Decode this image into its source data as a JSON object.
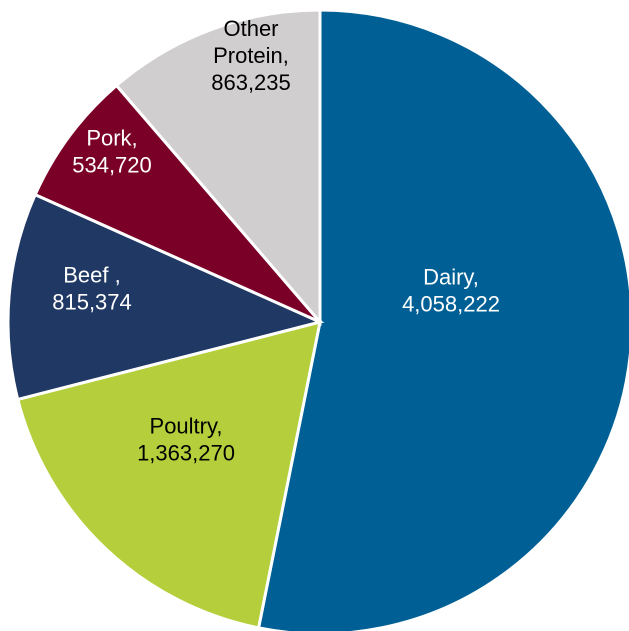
{
  "chart_data": {
    "type": "pie",
    "title": "",
    "start_angle_deg": 0,
    "direction": "clockwise",
    "slices": [
      {
        "label": "Dairy,",
        "value_text": "4,058,222",
        "value": 4058222,
        "color": "#006095",
        "text_color": "#ffffff"
      },
      {
        "label": "Poultry,",
        "value_text": "1,363,270",
        "value": 1363270,
        "color": "#b5cf3c",
        "text_color": "#000000"
      },
      {
        "label": "Beef ,",
        "value_text": "815,374",
        "value": 815374,
        "color": "#1f3864",
        "text_color": "#ffffff"
      },
      {
        "label": "Pork,",
        "value_text": "534,720",
        "value": 534720,
        "color": "#7b0028",
        "text_color": "#ffffff"
      },
      {
        "label": "Other Protein,",
        "value_text": "863,235",
        "value": 863235,
        "color": "#d0cece",
        "text_color": "#000000"
      }
    ]
  }
}
